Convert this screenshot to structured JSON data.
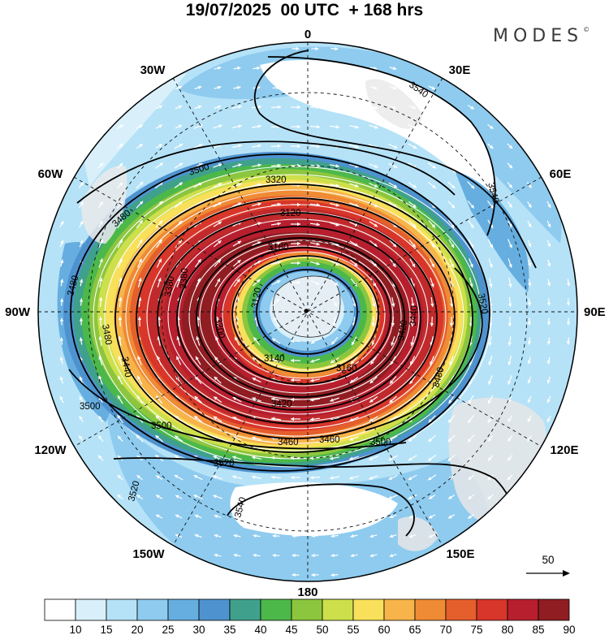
{
  "title": "19/07/2025  00 UTC  + 168 hrs",
  "brand": {
    "name": "MODES",
    "mark": "©"
  },
  "map": {
    "projection": "south-polar-stereographic",
    "longitude_labels": {
      "top": "0",
      "bottom": "180",
      "left": "90W",
      "right": "90E",
      "top_left": "30W",
      "top_right": "30E",
      "upper_left": "60W",
      "upper_right": "60E",
      "lower_left": "120W",
      "lower_right": "120E",
      "bottom_left": "150W",
      "bottom_right": "150E"
    },
    "contour_labels": {
      "c1": "3540",
      "c2": "3540",
      "c3": "3500",
      "c4": "3480",
      "c5": "3480",
      "c6": "3480",
      "c7": "3500",
      "c8": "3500",
      "c9": "3520",
      "c10": "3540",
      "c11": "3520",
      "c12": "3480",
      "c13": "3440",
      "c14": "3420",
      "c15": "3380",
      "c16": "3380",
      "c17": "3320",
      "c18": "3200",
      "c19": "3180",
      "c20": "3140",
      "c21": "3160",
      "c22": "3120",
      "c23": "3120",
      "c24": "3520",
      "c25": "3460",
      "c26": "3500",
      "c27": "3440",
      "c28": "3420",
      "c29": "3460"
    },
    "vector_reference": {
      "label": "50"
    }
  },
  "colorbar": {
    "ticks": [
      "10",
      "15",
      "20",
      "25",
      "30",
      "35",
      "40",
      "45",
      "50",
      "55",
      "60",
      "65",
      "70",
      "75",
      "80",
      "85",
      "90"
    ],
    "colors": [
      "#ffffff",
      "#d9f0fb",
      "#b5e2f7",
      "#8ecbef",
      "#66aee0",
      "#4e93cf",
      "#3fa18c",
      "#4cb84a",
      "#8cc63f",
      "#cde04b",
      "#f8e05a",
      "#f6b44a",
      "#ef8a35",
      "#e55f2c",
      "#d8362a",
      "#b71f2e",
      "#8f1d22"
    ]
  }
}
